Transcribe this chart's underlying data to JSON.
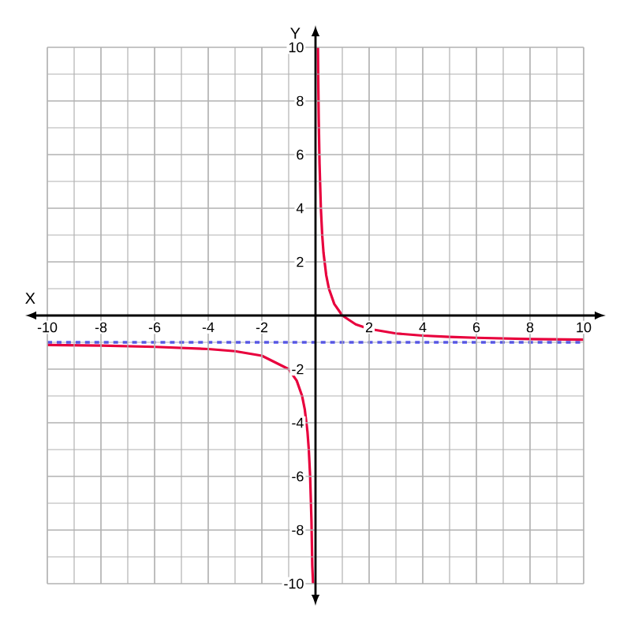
{
  "chart_data": {
    "type": "line",
    "xlabel": "X",
    "ylabel": "Y",
    "xlim": [
      -10,
      10
    ],
    "ylim": [
      -10,
      10
    ],
    "xticks": [
      -10,
      -8,
      -6,
      -4,
      -2,
      2,
      4,
      6,
      8,
      10
    ],
    "yticks": [
      -10,
      -8,
      -6,
      -4,
      -2,
      2,
      4,
      6,
      8,
      10
    ],
    "grid": true,
    "line_style": "solid",
    "series": [
      {
        "color": "#e8003d",
        "x": [
          0.0909,
          0.1,
          0.12,
          0.15,
          0.2,
          0.25,
          0.3,
          0.4,
          0.5,
          0.7,
          1,
          1.5,
          2,
          3,
          4,
          5,
          6,
          8,
          10
        ],
        "values": [
          10,
          9,
          7.33,
          5.67,
          4,
          3,
          2.33,
          1.5,
          1,
          0.43,
          0,
          -0.33,
          -0.5,
          -0.67,
          -0.75,
          -0.8,
          -0.83,
          -0.88,
          -0.9
        ]
      },
      {
        "color": "#e8003d",
        "x": [
          -10,
          -8,
          -6,
          -4,
          -3,
          -2,
          -1,
          -0.7,
          -0.5,
          -0.4,
          -0.3,
          -0.25,
          -0.2,
          -0.15,
          -0.12,
          -0.0909
        ],
        "values": [
          -1.1,
          -1.12,
          -1.17,
          -1.25,
          -1.33,
          -1.5,
          -2,
          -2.43,
          -3,
          -3.5,
          -4.33,
          -5,
          -6,
          -7.67,
          -9.33,
          -10
        ]
      }
    ],
    "ref_lines": [
      {
        "axis": "y",
        "value": -1,
        "color": "#0000ff",
        "line_style": "dashed"
      }
    ]
  }
}
